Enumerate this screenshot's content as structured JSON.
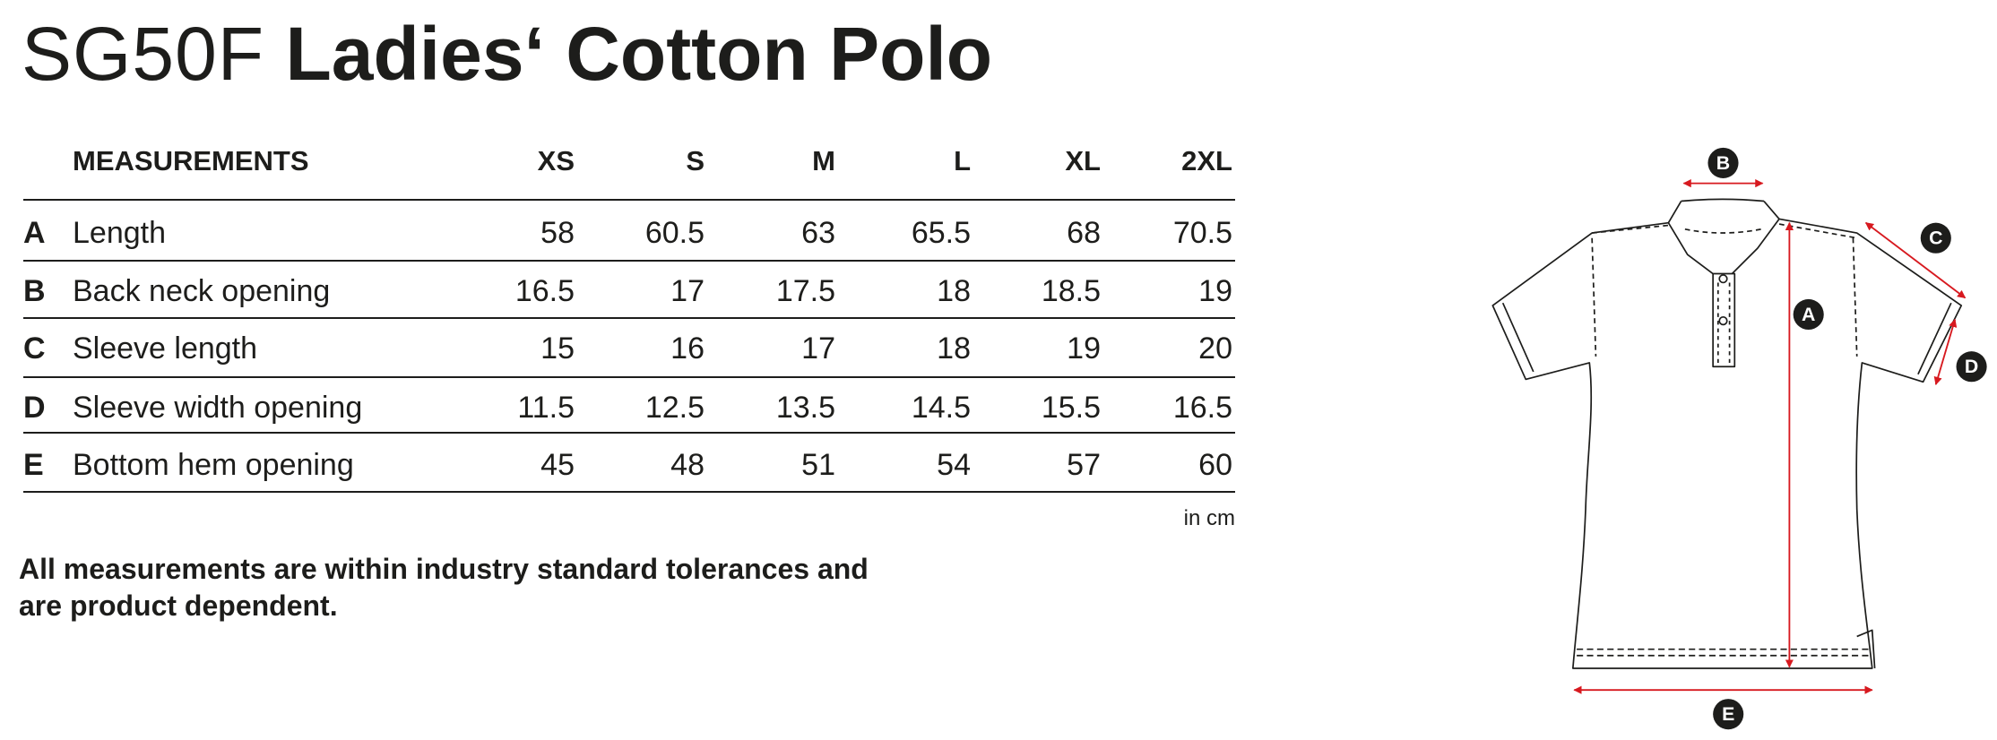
{
  "header": {
    "code": "SG50F",
    "title": "Ladies‘ Cotton Polo"
  },
  "table": {
    "columns": [
      "MEASUREMENTS",
      "XS",
      "S",
      "M",
      "L",
      "XL",
      "2XL"
    ],
    "rows": [
      [
        "A",
        "Length",
        58,
        60.5,
        63,
        65.5,
        68,
        70.5
      ],
      [
        "B",
        "Back neck opening",
        16.5,
        17,
        17.5,
        18,
        18.5,
        19
      ],
      [
        "C",
        "Sleeve length",
        15,
        16,
        17,
        18,
        19,
        20
      ],
      [
        "D",
        "Sleeve width opening",
        11.5,
        12.5,
        13.5,
        14.5,
        15.5,
        16.5
      ],
      [
        "E",
        "Bottom hem opening",
        45,
        48,
        51,
        54,
        57,
        60
      ]
    ],
    "unit": "in cm"
  },
  "note": {
    "lines": [
      "All measurements are within industry standard tolerances and",
      "are product dependent."
    ]
  },
  "diagram": {
    "labels": [
      "A",
      "B",
      "C",
      "D",
      "E"
    ]
  }
}
